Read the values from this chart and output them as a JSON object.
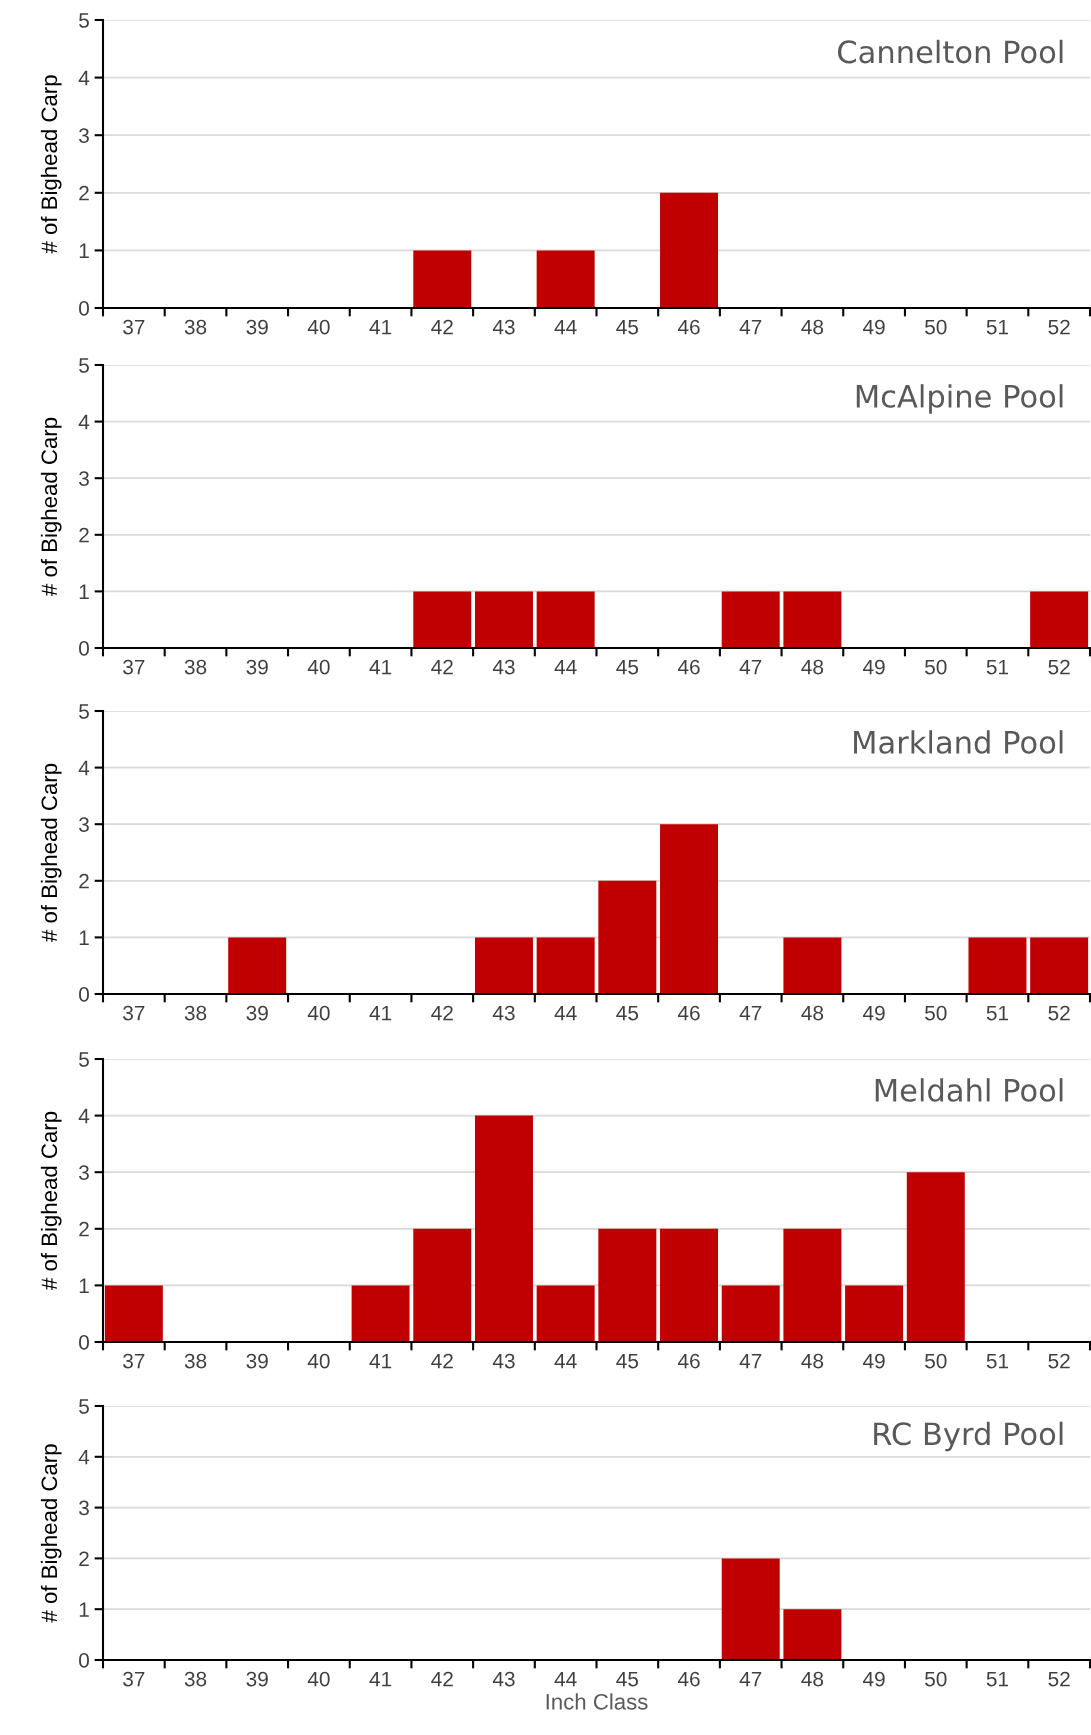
{
  "chart_data": [
    {
      "type": "bar",
      "title": "Cannelton Pool",
      "ylabel": "# of Bighead Carp",
      "categories": [
        "37",
        "38",
        "39",
        "40",
        "41",
        "42",
        "43",
        "44",
        "45",
        "46",
        "47",
        "48",
        "49",
        "50",
        "51",
        "52"
      ],
      "color": "#c00000",
      "values": [
        0,
        0,
        0,
        0,
        0,
        1,
        0,
        1,
        0,
        2,
        0,
        0,
        0,
        0,
        0,
        0
      ],
      "ylim": [
        0,
        5
      ],
      "yticks": [
        0,
        1,
        2,
        3,
        4,
        5
      ],
      "grid": "y",
      "legend": false
    },
    {
      "type": "bar",
      "title": "McAlpine Pool",
      "ylabel": "# of Bighead Carp",
      "categories": [
        "37",
        "38",
        "39",
        "40",
        "41",
        "42",
        "43",
        "44",
        "45",
        "46",
        "47",
        "48",
        "49",
        "50",
        "51",
        "52"
      ],
      "color": "#c00000",
      "values": [
        0,
        0,
        0,
        0,
        0,
        1,
        1,
        1,
        0,
        0,
        1,
        1,
        0,
        0,
        0,
        1
      ],
      "ylim": [
        0,
        5
      ],
      "yticks": [
        0,
        1,
        2,
        3,
        4,
        5
      ],
      "grid": "y",
      "legend": false
    },
    {
      "type": "bar",
      "title": "Markland Pool",
      "ylabel": "# of Bighead Carp",
      "categories": [
        "37",
        "38",
        "39",
        "40",
        "41",
        "42",
        "43",
        "44",
        "45",
        "46",
        "47",
        "48",
        "49",
        "50",
        "51",
        "52"
      ],
      "color": "#c00000",
      "values": [
        0,
        0,
        1,
        0,
        0,
        0,
        1,
        1,
        2,
        3,
        0,
        1,
        0,
        0,
        1,
        1
      ],
      "ylim": [
        0,
        5
      ],
      "yticks": [
        0,
        1,
        2,
        3,
        4,
        5
      ],
      "grid": "y",
      "legend": false
    },
    {
      "type": "bar",
      "title": "Meldahl Pool",
      "ylabel": "# of Bighead Carp",
      "categories": [
        "37",
        "38",
        "39",
        "40",
        "41",
        "42",
        "43",
        "44",
        "45",
        "46",
        "47",
        "48",
        "49",
        "50",
        "51",
        "52"
      ],
      "color": "#c00000",
      "values": [
        1,
        0,
        0,
        0,
        1,
        2,
        4,
        1,
        2,
        2,
        1,
        2,
        1,
        3,
        0,
        0
      ],
      "ylim": [
        0,
        5
      ],
      "yticks": [
        0,
        1,
        2,
        3,
        4,
        5
      ],
      "grid": "y",
      "legend": false
    },
    {
      "type": "bar",
      "title": "RC Byrd Pool",
      "ylabel": "# of Bighead Carp",
      "xlabel": "Inch Class",
      "categories": [
        "37",
        "38",
        "39",
        "40",
        "41",
        "42",
        "43",
        "44",
        "45",
        "46",
        "47",
        "48",
        "49",
        "50",
        "51",
        "52"
      ],
      "color": "#c00000",
      "values": [
        0,
        0,
        0,
        0,
        0,
        0,
        0,
        0,
        0,
        0,
        2,
        1,
        0,
        0,
        0,
        0
      ],
      "ylim": [
        0,
        5
      ],
      "yticks": [
        0,
        1,
        2,
        3,
        4,
        5
      ],
      "grid": "y",
      "legend": false
    }
  ]
}
